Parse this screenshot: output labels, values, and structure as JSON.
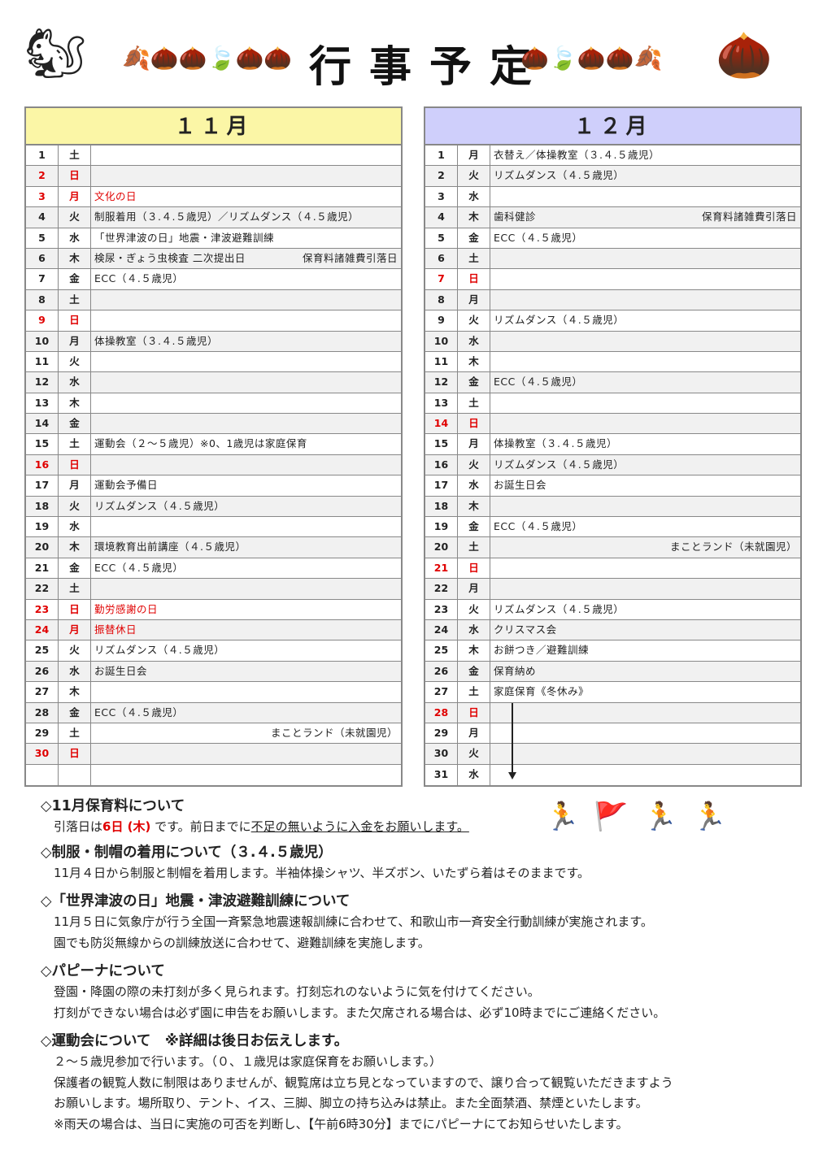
{
  "title": "行事予定",
  "colors": {
    "nov_header": "#fbf6a6",
    "dec_header": "#cfcffb",
    "holiday": "#e00000"
  },
  "november": {
    "header": "１１月",
    "rows": [
      {
        "d": "1",
        "w": "土",
        "t": "",
        "r": ""
      },
      {
        "d": "2",
        "w": "日",
        "t": "",
        "r": "",
        "red": true
      },
      {
        "d": "3",
        "w": "月",
        "t": "文化の日",
        "r": "",
        "red": true
      },
      {
        "d": "4",
        "w": "火",
        "t": "制服着用（３.４.５歳児）／リズムダンス（４.５歳児）",
        "r": ""
      },
      {
        "d": "5",
        "w": "水",
        "t": "「世界津波の日」地震・津波避難訓練",
        "r": ""
      },
      {
        "d": "6",
        "w": "木",
        "t": "検尿・ぎょう虫検査 二次提出日",
        "r": "保育料諸雑費引落日"
      },
      {
        "d": "7",
        "w": "金",
        "t": "ECC（４.５歳児）",
        "r": ""
      },
      {
        "d": "8",
        "w": "土",
        "t": "",
        "r": ""
      },
      {
        "d": "9",
        "w": "日",
        "t": "",
        "r": "",
        "red": true
      },
      {
        "d": "10",
        "w": "月",
        "t": "体操教室（３.４.５歳児）",
        "r": ""
      },
      {
        "d": "11",
        "w": "火",
        "t": "",
        "r": ""
      },
      {
        "d": "12",
        "w": "水",
        "t": "",
        "r": ""
      },
      {
        "d": "13",
        "w": "木",
        "t": "",
        "r": ""
      },
      {
        "d": "14",
        "w": "金",
        "t": "",
        "r": ""
      },
      {
        "d": "15",
        "w": "土",
        "t": "運動会（２～５歳児）※0、1歳児は家庭保育",
        "r": ""
      },
      {
        "d": "16",
        "w": "日",
        "t": "",
        "r": "",
        "red": true
      },
      {
        "d": "17",
        "w": "月",
        "t": "運動会予備日",
        "r": ""
      },
      {
        "d": "18",
        "w": "火",
        "t": "リズムダンス（４.５歳児）",
        "r": ""
      },
      {
        "d": "19",
        "w": "水",
        "t": "",
        "r": ""
      },
      {
        "d": "20",
        "w": "木",
        "t": "環境教育出前講座（４.５歳児）",
        "r": ""
      },
      {
        "d": "21",
        "w": "金",
        "t": "ECC（４.５歳児）",
        "r": ""
      },
      {
        "d": "22",
        "w": "土",
        "t": "",
        "r": ""
      },
      {
        "d": "23",
        "w": "日",
        "t": "勤労感謝の日",
        "r": "",
        "red": true
      },
      {
        "d": "24",
        "w": "月",
        "t": "振替休日",
        "r": "",
        "red": true
      },
      {
        "d": "25",
        "w": "火",
        "t": "リズムダンス（４.５歳児）",
        "r": ""
      },
      {
        "d": "26",
        "w": "水",
        "t": "お誕生日会",
        "r": ""
      },
      {
        "d": "27",
        "w": "木",
        "t": "",
        "r": ""
      },
      {
        "d": "28",
        "w": "金",
        "t": "ECC（４.５歳児）",
        "r": ""
      },
      {
        "d": "29",
        "w": "土",
        "t": "",
        "r": "まことランド（未就園児）"
      },
      {
        "d": "30",
        "w": "日",
        "t": "",
        "r": "",
        "red": true
      },
      {
        "d": "",
        "w": "",
        "t": "",
        "r": ""
      }
    ]
  },
  "december": {
    "header": "１２月",
    "rows": [
      {
        "d": "1",
        "w": "月",
        "t": "衣替え／体操教室（３.４.５歳児）",
        "r": ""
      },
      {
        "d": "2",
        "w": "火",
        "t": "リズムダンス（４.５歳児）",
        "r": ""
      },
      {
        "d": "3",
        "w": "水",
        "t": "",
        "r": ""
      },
      {
        "d": "4",
        "w": "木",
        "t": "歯科健診",
        "r": "保育料諸雑費引落日"
      },
      {
        "d": "5",
        "w": "金",
        "t": "ECC（４.５歳児）",
        "r": ""
      },
      {
        "d": "6",
        "w": "土",
        "t": "",
        "r": ""
      },
      {
        "d": "7",
        "w": "日",
        "t": "",
        "r": "",
        "red": true
      },
      {
        "d": "8",
        "w": "月",
        "t": "",
        "r": ""
      },
      {
        "d": "9",
        "w": "火",
        "t": "リズムダンス（４.５歳児）",
        "r": ""
      },
      {
        "d": "10",
        "w": "水",
        "t": "",
        "r": ""
      },
      {
        "d": "11",
        "w": "木",
        "t": "",
        "r": ""
      },
      {
        "d": "12",
        "w": "金",
        "t": "ECC（４.５歳児）",
        "r": ""
      },
      {
        "d": "13",
        "w": "土",
        "t": "",
        "r": ""
      },
      {
        "d": "14",
        "w": "日",
        "t": "",
        "r": "",
        "red": true
      },
      {
        "d": "15",
        "w": "月",
        "t": "体操教室（３.４.５歳児）",
        "r": ""
      },
      {
        "d": "16",
        "w": "火",
        "t": "リズムダンス（４.５歳児）",
        "r": ""
      },
      {
        "d": "17",
        "w": "水",
        "t": "お誕生日会",
        "r": ""
      },
      {
        "d": "18",
        "w": "木",
        "t": "",
        "r": ""
      },
      {
        "d": "19",
        "w": "金",
        "t": "ECC（４.５歳児）",
        "r": ""
      },
      {
        "d": "20",
        "w": "土",
        "t": "",
        "r": "まことランド（未就園児）"
      },
      {
        "d": "21",
        "w": "日",
        "t": "",
        "r": "",
        "red": true
      },
      {
        "d": "22",
        "w": "月",
        "t": "",
        "r": ""
      },
      {
        "d": "23",
        "w": "火",
        "t": "リズムダンス（４.５歳児）",
        "r": ""
      },
      {
        "d": "24",
        "w": "水",
        "t": "クリスマス会",
        "r": ""
      },
      {
        "d": "25",
        "w": "木",
        "t": "お餅つき／避難訓練",
        "r": ""
      },
      {
        "d": "26",
        "w": "金",
        "t": "保育納め",
        "r": ""
      },
      {
        "d": "27",
        "w": "土",
        "t": "家庭保育《冬休み》",
        "r": ""
      },
      {
        "d": "28",
        "w": "日",
        "t": "",
        "r": "",
        "red": true
      },
      {
        "d": "29",
        "w": "月",
        "t": "",
        "r": ""
      },
      {
        "d": "30",
        "w": "火",
        "t": "",
        "r": ""
      },
      {
        "d": "31",
        "w": "水",
        "t": "",
        "r": ""
      }
    ]
  },
  "notes": {
    "fee": {
      "heading": "◇11月保育料について",
      "pre": "引落日は",
      "date": "6日 (木)",
      "mid": " です。前日までに",
      "underlined": "不足の無いように入金をお願いします。"
    },
    "uniform": {
      "heading": "◇制服・制帽の着用について（３.４.５歳児）",
      "lines": [
        "11月４日から制服と制帽を着用します。半袖体操シャツ、半ズボン、いたずら着はそのままです。"
      ]
    },
    "tsunami": {
      "heading": "◇「世界津波の日」地震・津波避難訓練について",
      "lines": [
        "11月５日に気象庁が行う全国一斉緊急地震速報訓練に合わせて、和歌山市一斉安全行動訓練が実施されます。",
        "園でも防災無線からの訓練放送に合わせて、避難訓練を実施します。"
      ]
    },
    "papina": {
      "heading": "◇パピーナについて",
      "lines": [
        "登園・降園の際の未打刻が多く見られます。打刻忘れのないように気を付けてください。",
        "打刻ができない場合は必ず園に申告をお願いします。また欠席される場合は、必ず10時までにご連絡ください。"
      ]
    },
    "sports": {
      "heading": "◇運動会について　※詳細は後日お伝えします。",
      "lines": [
        "２～５歳児参加で行います。（０、１歳児は家庭保育をお願いします。）",
        "保護者の観覧人数に制限はありませんが、観覧席は立ち見となっていますので、譲り合って観覧いただきますよう",
        "お願いします。場所取り、テント、イス、三脚、脚立の持ち込みは禁止。また全面禁酒、禁煙といたします。",
        "※雨天の場合は、当日に実施の可否を判断し、【午前6時30分】までにパピーナにてお知らせいたします。"
      ]
    }
  }
}
